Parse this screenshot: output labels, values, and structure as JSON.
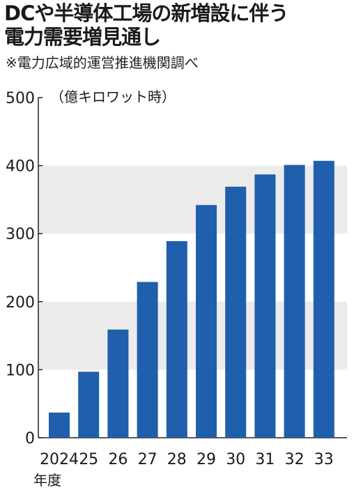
{
  "title_lines": [
    "DCや半導体工場の新増設に伴う",
    "電力需要増見通し"
  ],
  "source_note": "※電力広域的運営推進機関調べ",
  "chart_data": {
    "type": "bar",
    "title": "DCや半導体工場の新増設に伴う電力需要増見通し",
    "unit_label": "（億キロワット時）",
    "xlabel": "年度",
    "ylabel": "",
    "categories": [
      "2024",
      "25",
      "26",
      "27",
      "28",
      "29",
      "30",
      "31",
      "32",
      "33"
    ],
    "values": [
      37,
      97,
      159,
      229,
      289,
      342,
      369,
      387,
      401,
      407
    ],
    "ylim": [
      0,
      500
    ],
    "yticks": [
      0,
      100,
      200,
      300,
      400,
      500
    ],
    "bar_color": "#1f5fab",
    "band_color": "#ebebeb",
    "grid": "alternating horizontal bands",
    "legend": "none"
  }
}
